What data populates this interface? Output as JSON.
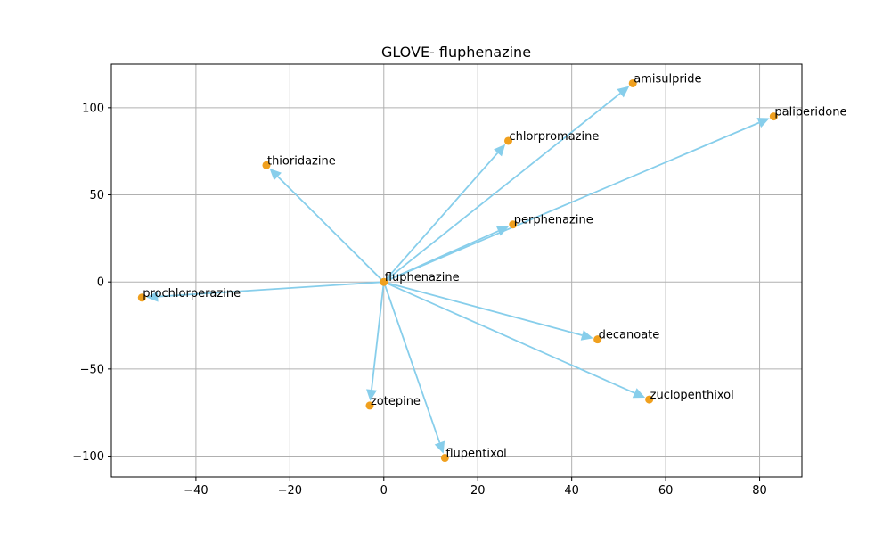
{
  "chart_data": {
    "type": "scatter",
    "title": "GLOVE- fluphenazine",
    "xlabel": "",
    "ylabel": "",
    "xlim": [
      -58,
      89
    ],
    "ylim": [
      -112,
      125
    ],
    "xticks": [
      -40,
      -20,
      0,
      20,
      40,
      60,
      80
    ],
    "yticks": [
      -100,
      -50,
      0,
      50,
      100
    ],
    "grid": true,
    "origin": {
      "label": "fluphenazine",
      "x": 0,
      "y": 0
    },
    "points": [
      {
        "label": "amisulpride",
        "x": 53,
        "y": 114
      },
      {
        "label": "paliperidone",
        "x": 83,
        "y": 95
      },
      {
        "label": "chlorpromazine",
        "x": 26.5,
        "y": 81
      },
      {
        "label": "thioridazine",
        "x": -25,
        "y": 67
      },
      {
        "label": "perphenazine",
        "x": 27.5,
        "y": 33
      },
      {
        "label": "prochlorperazine",
        "x": -51.5,
        "y": -9
      },
      {
        "label": "decanoate",
        "x": 45.5,
        "y": -33
      },
      {
        "label": "zuclopenthixol",
        "x": 56.5,
        "y": -67.5
      },
      {
        "label": "zotepine",
        "x": -3,
        "y": -71
      },
      {
        "label": "flupentixol",
        "x": 13,
        "y": -101
      }
    ],
    "colors": {
      "point": "#f0a01e",
      "arrow": "#87ceeb",
      "grid": "#b0b0b0"
    }
  }
}
